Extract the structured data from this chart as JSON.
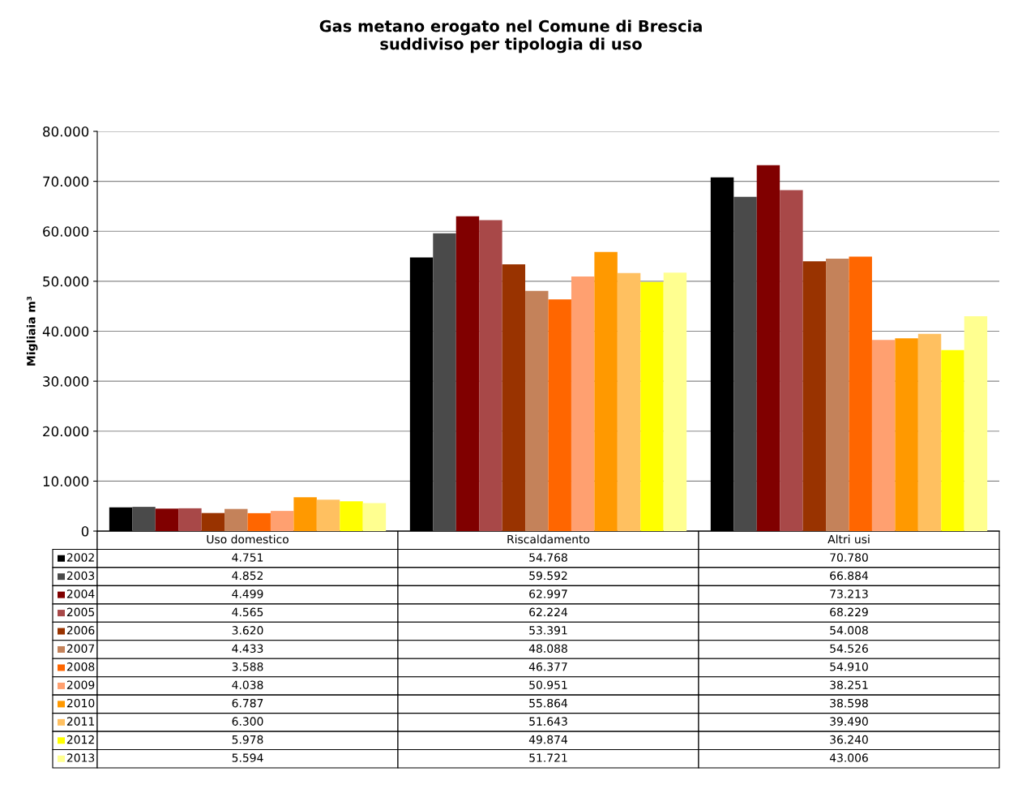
{
  "chart_data": {
    "type": "bar",
    "title": "Gas metano erogato nel Comune di Brescia\nsuddiviso per tipologia di uso",
    "ylabel": "Migliaia m³",
    "categories": [
      "Uso domestico",
      "Riscaldamento",
      "Altri usi"
    ],
    "ylim": [
      0,
      80000
    ],
    "yticks": [
      {
        "value": 0,
        "label": "0"
      },
      {
        "value": 10000,
        "label": "10.000"
      },
      {
        "value": 20000,
        "label": "20.000"
      },
      {
        "value": 30000,
        "label": "30.000"
      },
      {
        "value": 40000,
        "label": "40.000"
      },
      {
        "value": 50000,
        "label": "50.000"
      },
      {
        "value": 60000,
        "label": "60.000"
      },
      {
        "value": 70000,
        "label": "70.000"
      },
      {
        "value": 80000,
        "label": "80.000"
      }
    ],
    "grid": "y",
    "tick_labels": "y",
    "legend": "bottom",
    "series": [
      {
        "name": "2002",
        "color": "#000000",
        "values": [
          4751,
          54768,
          70780
        ],
        "value_labels": [
          "4.751",
          "54.768",
          "70.780"
        ]
      },
      {
        "name": "2003",
        "color": "#4a4a4a",
        "values": [
          4852,
          59592,
          66884
        ],
        "value_labels": [
          "4.852",
          "59.592",
          "66.884"
        ]
      },
      {
        "name": "2004",
        "color": "#800000",
        "values": [
          4499,
          62997,
          73213
        ],
        "value_labels": [
          "4.499",
          "62.997",
          "73.213"
        ]
      },
      {
        "name": "2005",
        "color": "#a84848",
        "values": [
          4565,
          62224,
          68229
        ],
        "value_labels": [
          "4.565",
          "62.224",
          "68.229"
        ]
      },
      {
        "name": "2006",
        "color": "#993300",
        "values": [
          3620,
          53391,
          54008
        ],
        "value_labels": [
          "3.620",
          "53.391",
          "54.008"
        ]
      },
      {
        "name": "2007",
        "color": "#c4825a",
        "values": [
          4433,
          48088,
          54526
        ],
        "value_labels": [
          "4.433",
          "48.088",
          "54.526"
        ]
      },
      {
        "name": "2008",
        "color": "#ff6600",
        "values": [
          3588,
          46377,
          54910
        ],
        "value_labels": [
          "3.588",
          "46.377",
          "54.910"
        ]
      },
      {
        "name": "2009",
        "color": "#ffa070",
        "values": [
          4038,
          50951,
          38251
        ],
        "value_labels": [
          "4.038",
          "50.951",
          "38.251"
        ]
      },
      {
        "name": "2010",
        "color": "#ff9900",
        "values": [
          6787,
          55864,
          38598
        ],
        "value_labels": [
          "6.787",
          "55.864",
          "38.598"
        ]
      },
      {
        "name": "2011",
        "color": "#ffc060",
        "values": [
          6300,
          51643,
          39490
        ],
        "value_labels": [
          "6.300",
          "51.643",
          "39.490"
        ]
      },
      {
        "name": "2012",
        "color": "#ffff00",
        "values": [
          5978,
          49874,
          36240
        ],
        "value_labels": [
          "5.978",
          "49.874",
          "36.240"
        ]
      },
      {
        "name": "2013",
        "color": "#ffff90",
        "values": [
          5594,
          51721,
          43006
        ],
        "value_labels": [
          "5.594",
          "51.721",
          "43.006"
        ]
      }
    ]
  }
}
